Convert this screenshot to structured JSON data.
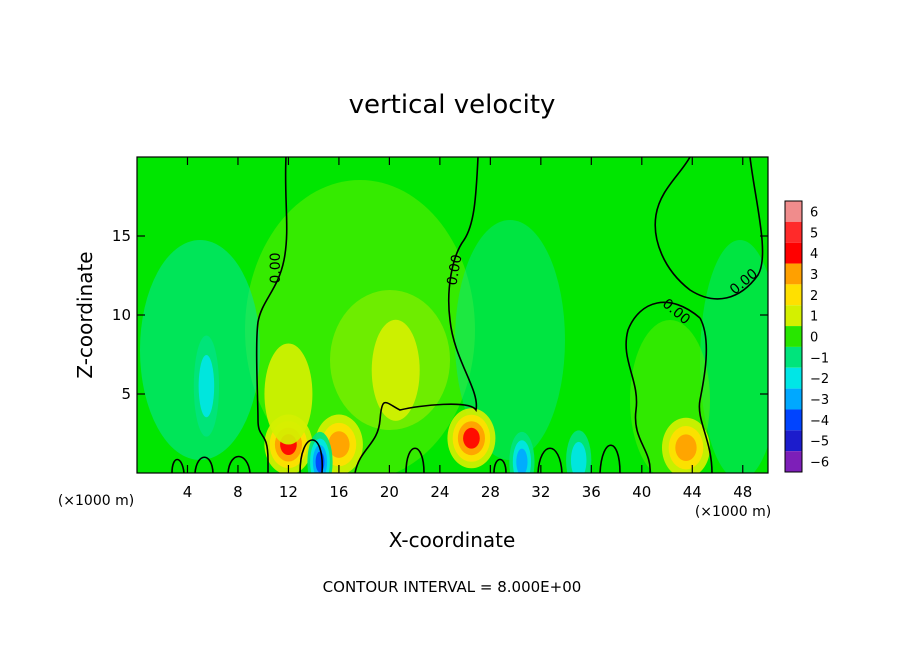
{
  "chart_data": {
    "type": "heatmap",
    "title": "vertical velocity",
    "xlabel": "X-coordinate",
    "ylabel": "Z-coordinate",
    "x_unit_left": "(×1000 m)",
    "x_unit_right": "(×1000 m)",
    "footer": "CONTOUR INTERVAL = 8.000E+00",
    "xlim": [
      0,
      50
    ],
    "ylim": [
      0,
      20
    ],
    "x_ticks": [
      4,
      8,
      12,
      16,
      20,
      24,
      28,
      32,
      36,
      40,
      44,
      48
    ],
    "y_ticks": [
      5,
      10,
      15
    ],
    "colorbar": {
      "levels": [
        6,
        5,
        4,
        3,
        2,
        1,
        0,
        -1,
        -2,
        -3,
        -4,
        -5,
        -6
      ],
      "labels": [
        "6",
        "5",
        "4",
        "3",
        "2",
        "1",
        "0",
        "−1",
        "−2",
        "−3",
        "−4",
        "−5",
        "−6"
      ],
      "colors": [
        "#f08c8c",
        "#ff2a2a",
        "#ff0000",
        "#ffa000",
        "#ffe000",
        "#d4f000",
        "#28e600",
        "#00e47c",
        "#00e6e6",
        "#00a8ff",
        "#0044ff",
        "#1c1ccc",
        "#7d1fb8"
      ]
    },
    "contour_label": "0.00",
    "cells": [
      {
        "x": 12.0,
        "z": 1.8,
        "w": 3.5
      },
      {
        "x": 16.0,
        "z": 1.8,
        "w": 3.2
      },
      {
        "x": 26.5,
        "z": 2.2,
        "w": 3.8
      },
      {
        "x": 43.5,
        "z": 1.6,
        "w": 3.0
      },
      {
        "x": 20.5,
        "z": 6.5,
        "w": 1.2
      },
      {
        "x": 12.0,
        "z": 5.0,
        "w": 1.0
      },
      {
        "x": 5.5,
        "z": 5.5,
        "w": -1.5
      },
      {
        "x": 14.5,
        "z": 0.7,
        "w": -3.5
      },
      {
        "x": 30.5,
        "z": 0.7,
        "w": -2.5
      },
      {
        "x": 35.0,
        "z": 0.8,
        "w": -2.0
      }
    ]
  }
}
